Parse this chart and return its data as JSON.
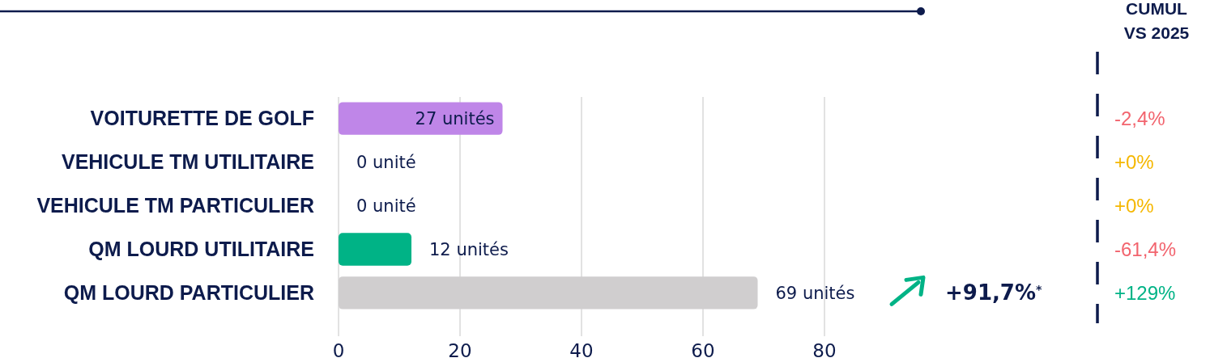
{
  "chart_data": {
    "type": "bar",
    "orientation": "horizontal",
    "categories": [
      "VOITURETTE DE GOLF",
      "VEHICULE TM UTILITAIRE",
      "VEHICULE TM PARTICULIER",
      "QM LOURD UTILITAIRE",
      "QM LOURD PARTICULIER"
    ],
    "values": [
      27,
      0,
      0,
      12,
      69
    ],
    "colors": [
      "#bf86e8",
      "#bf86e8",
      "#bf86e8",
      "#00b386",
      "#d0cecf"
    ],
    "value_labels": [
      "27 unités",
      "0 unité",
      "0 unité",
      "12 unités",
      "69 unités"
    ],
    "xlim": [
      0,
      80
    ],
    "xticks": [
      0,
      20,
      40,
      60,
      80
    ],
    "grid": "x",
    "annotations": [
      "CUMUL VS 2025",
      "+91,7%$^{*}$",
      "-2,4%",
      "+0%",
      "+0%",
      "-61,4%",
      "+129%"
    ]
  }
}
